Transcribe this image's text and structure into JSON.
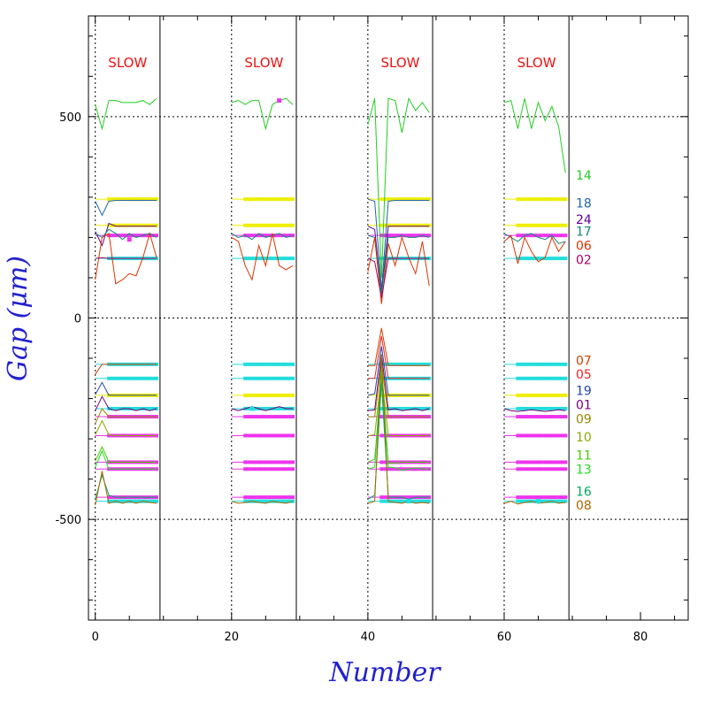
{
  "chart_data": {
    "type": "line",
    "xlabel": "Number",
    "ylabel": "Gap (μm)",
    "xlim": [
      -1,
      87
    ],
    "ylim": [
      -750,
      750
    ],
    "x_ticks": [
      "0",
      "20",
      "40",
      "60",
      "80"
    ],
    "y_ticks": [
      "500",
      "0",
      "-500"
    ],
    "grid_y": [
      -500,
      0,
      500
    ],
    "segment_bounds": [
      [
        0,
        9.5
      ],
      [
        20,
        29.5
      ],
      [
        40,
        49.5
      ],
      [
        60,
        69.5
      ]
    ],
    "segment_label": "SLOW",
    "colors": {
      "green": "#22cc22",
      "cyan": "#22dddd",
      "yellow": "#eeee00",
      "magenta": "#ee33ee",
      "series_14": "#22cc22",
      "series_18": "#2266aa",
      "series_24": "#660099",
      "series_17": "#118877",
      "series_06": "#dd3300",
      "series_02": "#aa0066",
      "series_07": "#cc4400",
      "series_05": "#ee2222",
      "series_19": "#2244aa",
      "series_01": "#770077",
      "series_09": "#998800",
      "series_10": "#88aa00",
      "series_11": "#44cc00",
      "series_13": "#22dd22",
      "series_16": "#00aa66",
      "series_08": "#aa6600"
    },
    "series_labels": [
      {
        "name": "14",
        "value": 355
      },
      {
        "name": "18",
        "value": 285
      },
      {
        "name": "24",
        "value": 245
      },
      {
        "name": "17",
        "value": 215
      },
      {
        "name": "06",
        "value": 180
      },
      {
        "name": "02",
        "value": 145
      },
      {
        "name": "07",
        "value": -105
      },
      {
        "name": "05",
        "value": -140
      },
      {
        "name": "19",
        "value": -180
      },
      {
        "name": "01",
        "value": -215
      },
      {
        "name": "09",
        "value": -250
      },
      {
        "name": "10",
        "value": -295
      },
      {
        "name": "11",
        "value": -340
      },
      {
        "name": "13",
        "value": -375
      },
      {
        "name": "16",
        "value": -430
      },
      {
        "name": "08",
        "value": -465
      }
    ],
    "flat_levels": [
      {
        "color": "yellow",
        "value": 295
      },
      {
        "color": "yellow",
        "value": 230
      },
      {
        "color": "magenta",
        "value": 205
      },
      {
        "color": "cyan",
        "value": 148
      },
      {
        "color": "cyan",
        "value": -115
      },
      {
        "color": "cyan",
        "value": -150
      },
      {
        "color": "yellow",
        "value": -192
      },
      {
        "color": "cyan",
        "value": -225
      },
      {
        "color": "magenta",
        "value": -245
      },
      {
        "color": "magenta",
        "value": -292
      },
      {
        "color": "magenta",
        "value": -358
      },
      {
        "color": "magenta",
        "value": -375
      },
      {
        "color": "magenta",
        "value": -445
      },
      {
        "color": "cyan",
        "value": -455
      }
    ],
    "series": [
      {
        "name": "14",
        "segments": [
          {
            "x0": 0,
            "values": [
              530,
              470,
              540,
              540,
              535,
              535,
              535,
              540,
              530,
              545
            ]
          },
          {
            "x0": 20,
            "values": [
              535,
              540,
              530,
              540,
              540,
              470,
              530,
              540,
              545,
              530
            ]
          },
          {
            "x0": 40,
            "values": [
              480,
              545,
              100,
              545,
              540,
              460,
              545,
              515,
              535,
              510
            ]
          },
          {
            "x0": 60,
            "values": [
              535,
              540,
              470,
              545,
              470,
              535,
              490,
              525,
              475,
              360
            ]
          }
        ]
      },
      {
        "name": "18",
        "segments": [
          {
            "x0": 0,
            "values": [
              290,
              255,
              290,
              292,
              292,
              292,
              292,
              292,
              292,
              292
            ]
          },
          {
            "x0": 40,
            "values": [
              295,
              290,
              70,
              290,
              292,
              292,
              292,
              292,
              292,
              292
            ]
          }
        ]
      },
      {
        "name": "24",
        "segments": [
          {
            "x0": 0,
            "values": [
              215,
              180,
              235,
              228,
              228,
              228,
              228,
              228,
              228,
              228
            ]
          },
          {
            "x0": 40,
            "values": [
              228,
              220,
              60,
              228,
              228,
              228,
              228,
              228,
              228,
              228
            ]
          }
        ]
      },
      {
        "name": "17",
        "segments": [
          {
            "x0": 0,
            "values": [
              210,
              200,
              220,
              210,
              195,
              210,
              200,
              205,
              210,
              200
            ]
          },
          {
            "x0": 20,
            "values": [
              210,
              200,
              205,
              195,
              210,
              200,
              205,
              210,
              200,
              205
            ]
          },
          {
            "x0": 40,
            "values": [
              205,
              200,
              60,
              200,
              200,
              205,
              200,
              200,
              205,
              200
            ]
          },
          {
            "x0": 60,
            "values": [
              210,
              200,
              190,
              205,
              210,
              200,
              195,
              205,
              185,
              190
            ]
          }
        ]
      },
      {
        "name": "06",
        "segments": [
          {
            "x0": 0,
            "values": [
              95,
              200,
              210,
              85,
              95,
              110,
              105,
              150,
              210,
              150
            ]
          },
          {
            "x0": 20,
            "values": [
              200,
              190,
              130,
              95,
              180,
              130,
              210,
              130,
              120,
              130
            ]
          },
          {
            "x0": 40,
            "values": [
              115,
              200,
              35,
              185,
              130,
              200,
              150,
              110,
              190,
              80
            ]
          },
          {
            "x0": 60,
            "values": [
              190,
              205,
              135,
              200,
              165,
              140,
              150,
              200,
              165,
              190
            ]
          }
        ]
      },
      {
        "name": "02",
        "segments": [
          {
            "x0": 0,
            "values": [
              148,
              150,
              148,
              148,
              148,
              148,
              148,
              148,
              148,
              148
            ]
          },
          {
            "x0": 40,
            "values": [
              148,
              140,
              50,
              148,
              148,
              148,
              148,
              148,
              148,
              148
            ]
          }
        ]
      },
      {
        "name": "07",
        "segments": [
          {
            "x0": 0,
            "values": [
              -140,
              -115,
              -115,
              -115,
              -115,
              -115,
              -115,
              -115,
              -115,
              -115
            ]
          },
          {
            "x0": 40,
            "values": [
              -118,
              -118,
              -25,
              -118,
              -118,
              -118,
              -118,
              -118,
              -118,
              -118
            ]
          }
        ]
      },
      {
        "name": "05",
        "segments": [
          {
            "x0": 40,
            "values": [
              -150,
              -150,
              -45,
              -150,
              -150,
              -150,
              -150,
              -150,
              -150,
              -150
            ]
          }
        ]
      },
      {
        "name": "19",
        "segments": [
          {
            "x0": 0,
            "values": [
              -190,
              -160,
              -192,
              -192,
              -192,
              -192,
              -192,
              -192,
              -192,
              -192
            ]
          },
          {
            "x0": 40,
            "values": [
              -192,
              -188,
              -70,
              -192,
              -192,
              -192,
              -192,
              -192,
              -192,
              -192
            ]
          }
        ]
      },
      {
        "name": "01",
        "segments": [
          {
            "x0": 0,
            "values": [
              -230,
              -195,
              -225,
              -230,
              -225,
              -225,
              -230,
              -225,
              -230,
              -225
            ]
          },
          {
            "x0": 20,
            "values": [
              -225,
              -230,
              -225,
              -220,
              -225,
              -230,
              -225,
              -220,
              -225,
              -225
            ]
          },
          {
            "x0": 40,
            "values": [
              -230,
              -228,
              -90,
              -228,
              -225,
              -230,
              -228,
              -225,
              -230,
              -225
            ]
          },
          {
            "x0": 60,
            "values": [
              -225,
              -230,
              -232,
              -230,
              -228,
              -230,
              -232,
              -230,
              -228,
              -230
            ]
          }
        ]
      },
      {
        "name": "09",
        "segments": [
          {
            "x0": 0,
            "values": [
              -262,
              -225,
              -245,
              -245,
              -245,
              -245,
              -245,
              -245,
              -245,
              -245
            ]
          },
          {
            "x0": 40,
            "values": [
              -245,
              -245,
              -110,
              -245,
              -245,
              -245,
              -245,
              -245,
              -245,
              -245
            ]
          }
        ]
      },
      {
        "name": "10",
        "segments": [
          {
            "x0": 0,
            "values": [
              -290,
              -255,
              -290,
              -292,
              -292,
              -292,
              -292,
              -292,
              -292,
              -292
            ]
          },
          {
            "x0": 40,
            "values": [
              -292,
              -290,
              -140,
              -292,
              -292,
              -292,
              -292,
              -292,
              -292,
              -292
            ]
          }
        ]
      },
      {
        "name": "11",
        "segments": [
          {
            "x0": 0,
            "values": [
              -355,
              -320,
              -358,
              -358,
              -358,
              -358,
              -358,
              -358,
              -358,
              -358
            ]
          },
          {
            "x0": 40,
            "values": [
              -358,
              -350,
              -150,
              -360,
              -360,
              -358,
              -358,
              -358,
              -358,
              -358
            ]
          }
        ]
      },
      {
        "name": "13",
        "segments": [
          {
            "x0": 0,
            "values": [
              -370,
              -330,
              -375,
              -375,
              -375,
              -375,
              -375,
              -375,
              -375,
              -375
            ]
          },
          {
            "x0": 40,
            "values": [
              -375,
              -370,
              -120,
              -370,
              -372,
              -378,
              -375,
              -372,
              -375,
              -375
            ]
          }
        ]
      },
      {
        "name": "16",
        "segments": [
          {
            "x0": 0,
            "values": [
              -450,
              -390,
              -440,
              -445,
              -445,
              -445,
              -445,
              -445,
              -445,
              -445
            ]
          },
          {
            "x0": 40,
            "values": [
              -450,
              -440,
              -160,
              -445,
              -445,
              -445,
              -450,
              -445,
              -445,
              -445
            ]
          }
        ]
      },
      {
        "name": "08",
        "segments": [
          {
            "x0": 0,
            "values": [
              -465,
              -380,
              -460,
              -455,
              -460,
              -455,
              -460,
              -455,
              -458,
              -460
            ]
          },
          {
            "x0": 20,
            "values": [
              -455,
              -460,
              -458,
              -455,
              -458,
              -460,
              -455,
              -458,
              -460,
              -455
            ]
          },
          {
            "x0": 40,
            "values": [
              -460,
              -455,
              -90,
              -455,
              -458,
              -460,
              -455,
              -460,
              -458,
              -460
            ]
          },
          {
            "x0": 60,
            "values": [
              -460,
              -455,
              -462,
              -458,
              -455,
              -460,
              -458,
              -455,
              -460,
              -458
            ]
          }
        ]
      }
    ],
    "markers": [
      {
        "color": "magenta",
        "x": 5,
        "value": 195
      },
      {
        "color": "magenta",
        "x": 27,
        "value": 540
      },
      {
        "color": "cyan",
        "x": 23,
        "value": -225
      },
      {
        "color": "cyan",
        "x": 46,
        "value": -455
      },
      {
        "color": "cyan",
        "x": 65,
        "value": -455
      }
    ]
  }
}
